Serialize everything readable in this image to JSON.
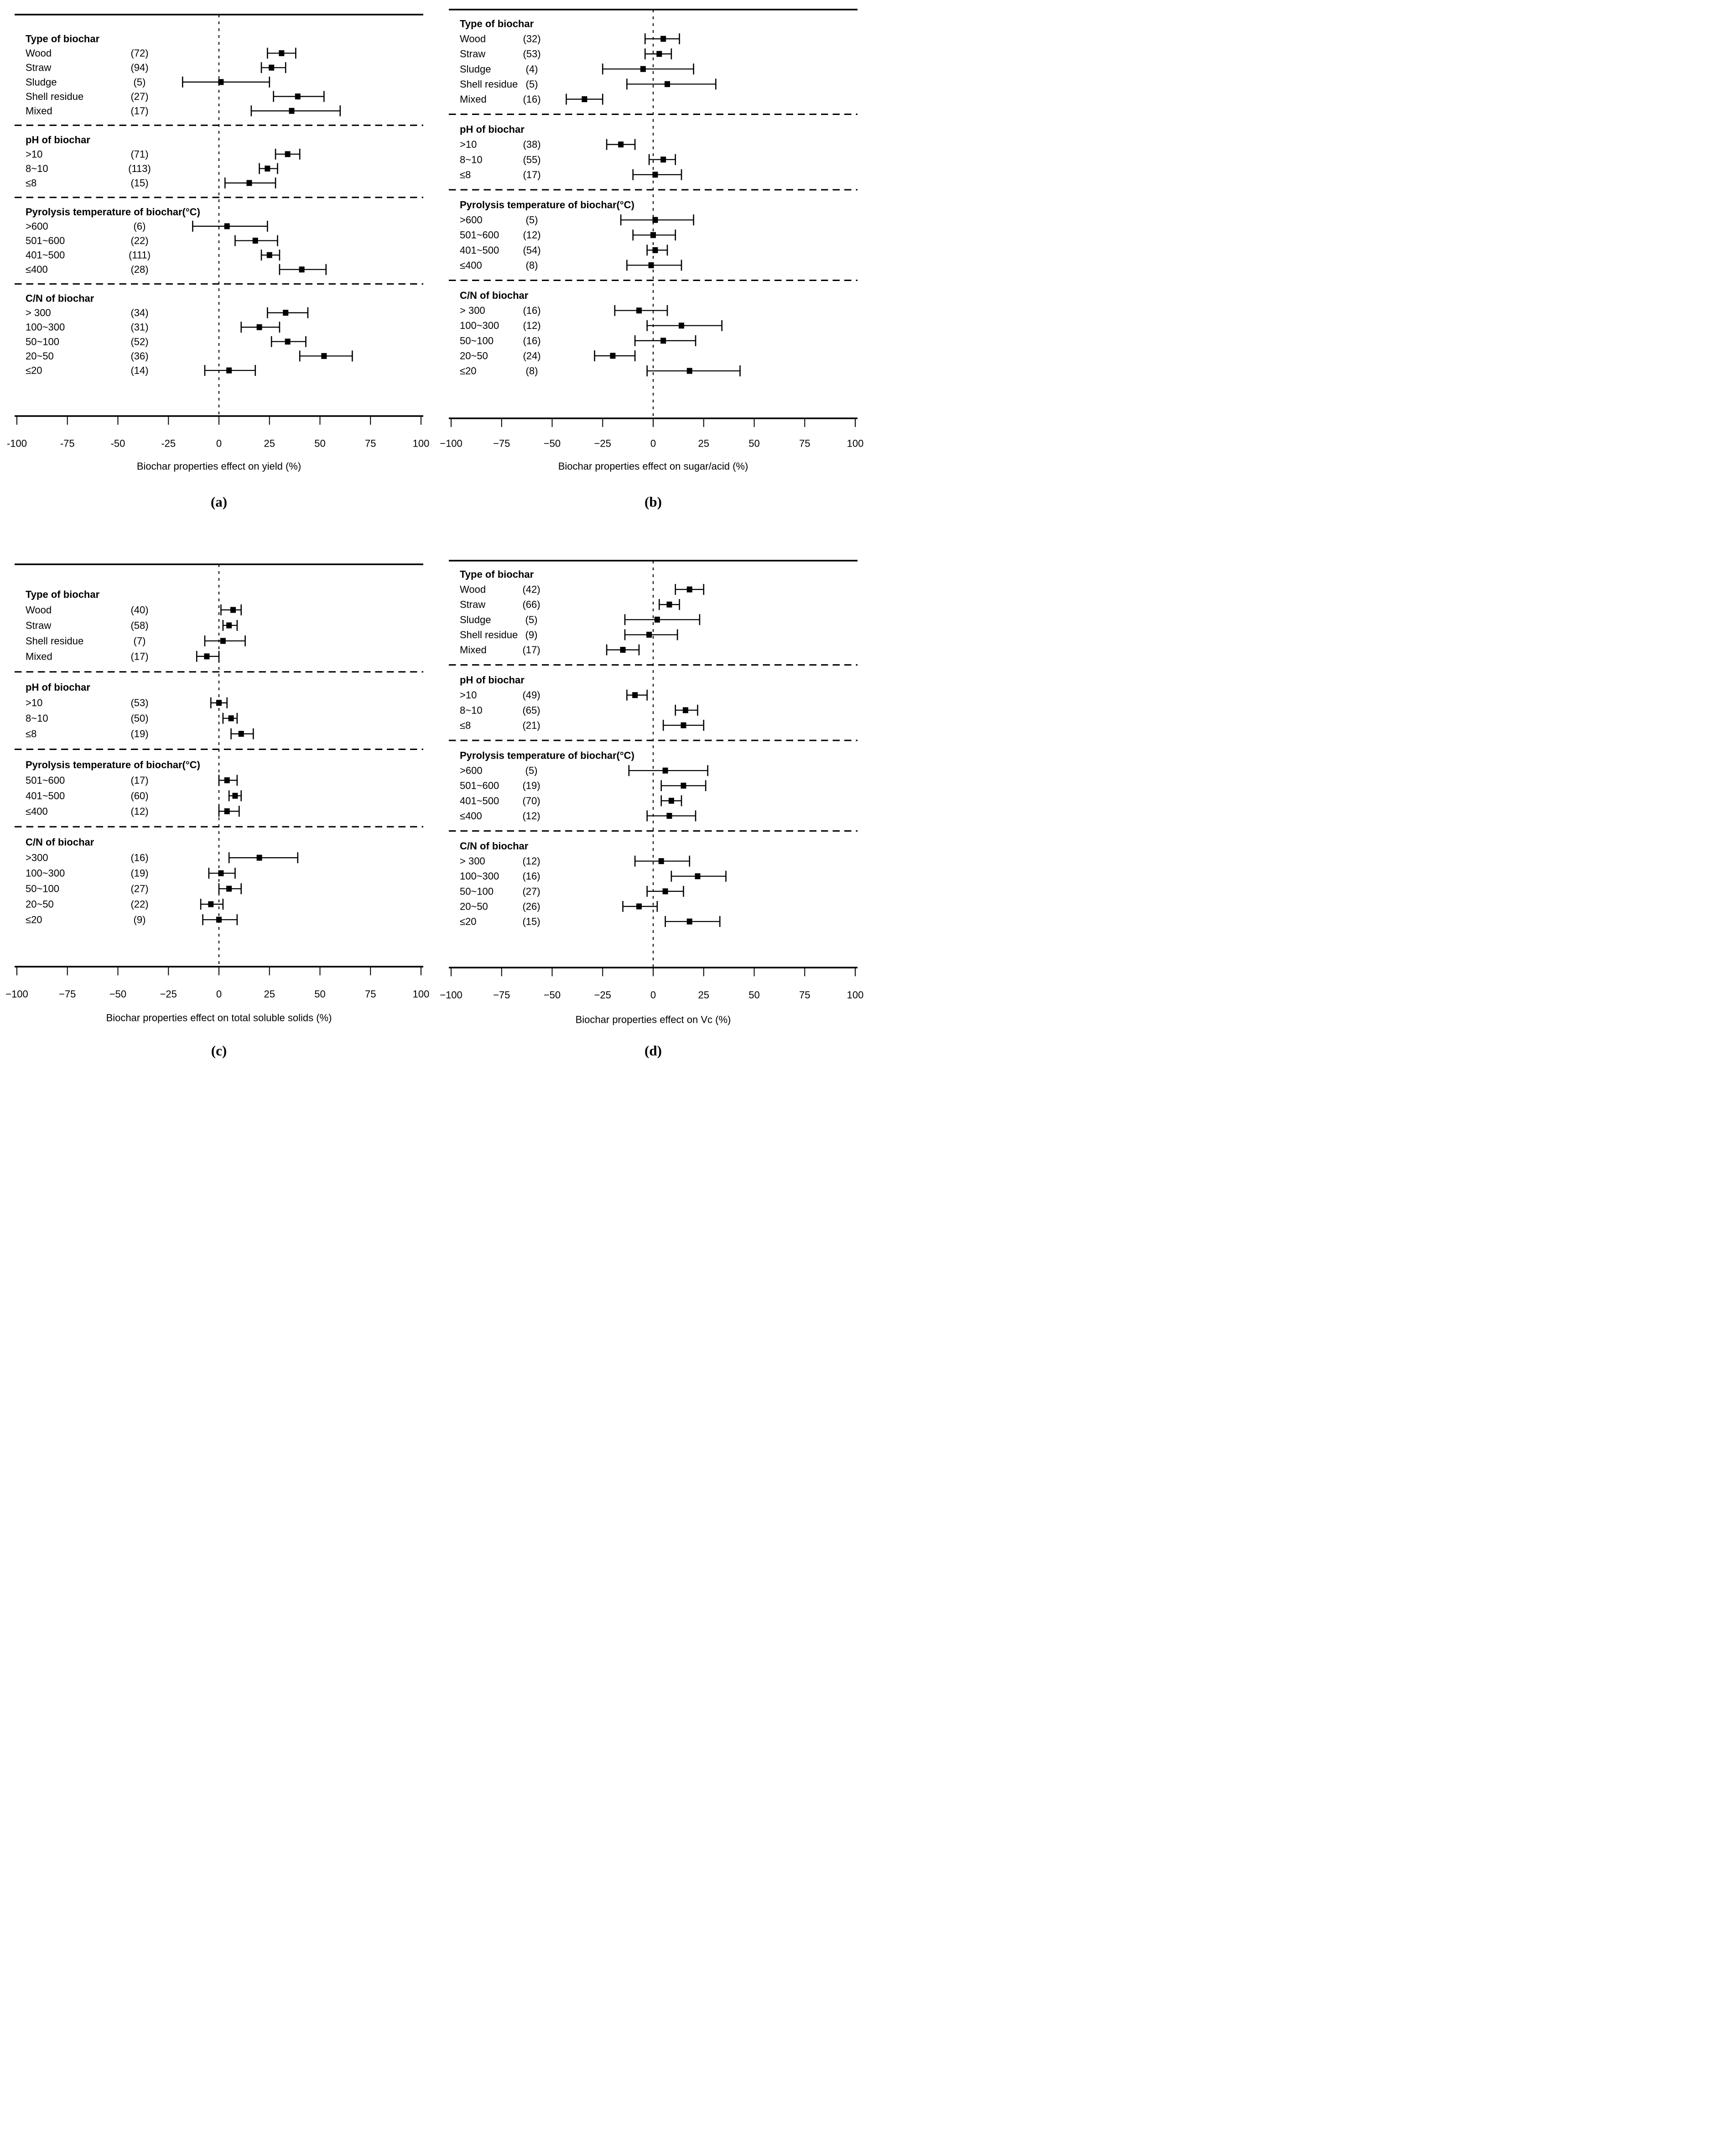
{
  "colors": {
    "ink": "#000000",
    "background": "#ffffff"
  },
  "chart_data": [
    {
      "type": "scatter",
      "style": "forest-plot",
      "id": "a",
      "panel_letter": "(a)",
      "xlabel": "Biochar properties effect on yield (%)",
      "xlim": [
        -100,
        100
      ],
      "xticks": [
        -100,
        -75,
        -50,
        -25,
        0,
        25,
        50,
        75,
        100
      ],
      "xtick_labels": [
        "-100",
        "-75",
        "-50",
        "-25",
        "0",
        "25",
        "50",
        "75",
        "100"
      ],
      "reference_line": 0,
      "legend": "none",
      "grid": false,
      "groups": [
        {
          "heading": "Type of biochar",
          "rows": [
            {
              "label": "Wood",
              "n_label": "(72)",
              "n": 72,
              "est": 31,
              "ci": [
                24,
                38
              ]
            },
            {
              "label": "Straw",
              "n_label": "(94)",
              "n": 94,
              "est": 26,
              "ci": [
                21,
                33
              ]
            },
            {
              "label": "Sludge",
              "n_label": "(5)",
              "n": 5,
              "est": 1,
              "ci": [
                -18,
                25
              ]
            },
            {
              "label": "Shell residue",
              "n_label": "(27)",
              "n": 27,
              "est": 39,
              "ci": [
                27,
                52
              ]
            },
            {
              "label": "Mixed",
              "n_label": "(17)",
              "n": 17,
              "est": 36,
              "ci": [
                16,
                60
              ]
            }
          ]
        },
        {
          "heading": "pH of biochar",
          "rows": [
            {
              "label": ">10",
              "n_label": "(71)",
              "n": 71,
              "est": 34,
              "ci": [
                28,
                40
              ]
            },
            {
              "label": "8~10",
              "n_label": "(113)",
              "n": 113,
              "est": 24,
              "ci": [
                20,
                29
              ]
            },
            {
              "label": "≤8",
              "n_label": "(15)",
              "n": 15,
              "est": 15,
              "ci": [
                3,
                28
              ]
            }
          ]
        },
        {
          "heading": "Pyrolysis temperature of biochar(°C)",
          "rows": [
            {
              "label": ">600",
              "n_label": "(6)",
              "n": 6,
              "est": 4,
              "ci": [
                -13,
                24
              ]
            },
            {
              "label": "501~600",
              "n_label": "(22)",
              "n": 22,
              "est": 18,
              "ci": [
                8,
                29
              ]
            },
            {
              "label": "401~500",
              "n_label": "(111)",
              "n": 111,
              "est": 25,
              "ci": [
                21,
                30
              ]
            },
            {
              "label": "≤400",
              "n_label": "(28)",
              "n": 28,
              "est": 41,
              "ci": [
                30,
                53
              ]
            }
          ]
        },
        {
          "heading": "C/N of biochar",
          "rows": [
            {
              "label": "> 300",
              "n_label": "(34)",
              "n": 34,
              "est": 33,
              "ci": [
                24,
                44
              ]
            },
            {
              "label": "100~300",
              "n_label": "(31)",
              "n": 31,
              "est": 20,
              "ci": [
                11,
                30
              ]
            },
            {
              "label": "50~100",
              "n_label": "(52)",
              "n": 52,
              "est": 34,
              "ci": [
                26,
                43
              ]
            },
            {
              "label": "20~50",
              "n_label": "(36)",
              "n": 36,
              "est": 52,
              "ci": [
                40,
                66
              ]
            },
            {
              "label": "≤20",
              "n_label": "(14)",
              "n": 14,
              "est": 5,
              "ci": [
                -7,
                18
              ]
            }
          ]
        }
      ]
    },
    {
      "type": "scatter",
      "style": "forest-plot",
      "id": "b",
      "panel_letter": "(b)",
      "xlabel": "Biochar properties effect on sugar/acid (%)",
      "xlim": [
        -100,
        100
      ],
      "xticks": [
        -100,
        -75,
        -50,
        -25,
        0,
        25,
        50,
        75,
        100
      ],
      "xtick_labels": [
        "−100",
        "−75",
        "−50",
        "−25",
        "0",
        "25",
        "50",
        "75",
        "100"
      ],
      "reference_line": 0,
      "legend": "none",
      "grid": false,
      "groups": [
        {
          "heading": "Type of biochar",
          "rows": [
            {
              "label": "Wood",
              "n_label": "(32)",
              "n": 32,
              "est": 5,
              "ci": [
                -4,
                13
              ]
            },
            {
              "label": "Straw",
              "n_label": "(53)",
              "n": 53,
              "est": 3,
              "ci": [
                -4,
                9
              ]
            },
            {
              "label": "Sludge",
              "n_label": "(4)",
              "n": 4,
              "est": -5,
              "ci": [
                -25,
                20
              ]
            },
            {
              "label": "Shell residue",
              "n_label": "(5)",
              "n": 5,
              "est": 7,
              "ci": [
                -13,
                31
              ]
            },
            {
              "label": "Mixed",
              "n_label": "(16)",
              "n": 16,
              "est": -34,
              "ci": [
                -43,
                -25
              ]
            }
          ]
        },
        {
          "heading": "pH of biochar",
          "rows": [
            {
              "label": ">10",
              "n_label": "(38)",
              "n": 38,
              "est": -16,
              "ci": [
                -23,
                -9
              ]
            },
            {
              "label": "8~10",
              "n_label": "(55)",
              "n": 55,
              "est": 5,
              "ci": [
                -2,
                11
              ]
            },
            {
              "label": "≤8",
              "n_label": "(17)",
              "n": 17,
              "est": 1,
              "ci": [
                -10,
                14
              ]
            }
          ]
        },
        {
          "heading": "Pyrolysis temperature of biochar(°C)",
          "rows": [
            {
              "label": ">600",
              "n_label": "(5)",
              "n": 5,
              "est": 1,
              "ci": [
                -16,
                20
              ]
            },
            {
              "label": "501~600",
              "n_label": "(12)",
              "n": 12,
              "est": 0,
              "ci": [
                -10,
                11
              ]
            },
            {
              "label": "401~500",
              "n_label": "(54)",
              "n": 54,
              "est": 1,
              "ci": [
                -3,
                7
              ]
            },
            {
              "label": "≤400",
              "n_label": "(8)",
              "n": 8,
              "est": -1,
              "ci": [
                -13,
                14
              ]
            }
          ]
        },
        {
          "heading": "C/N of biochar",
          "rows": [
            {
              "label": "> 300",
              "n_label": "(16)",
              "n": 16,
              "est": -7,
              "ci": [
                -19,
                7
              ]
            },
            {
              "label": "100~300",
              "n_label": "(12)",
              "n": 12,
              "est": 14,
              "ci": [
                -3,
                34
              ]
            },
            {
              "label": "50~100",
              "n_label": "(16)",
              "n": 16,
              "est": 5,
              "ci": [
                -9,
                21
              ]
            },
            {
              "label": "20~50",
              "n_label": "(24)",
              "n": 24,
              "est": -20,
              "ci": [
                -29,
                -9
              ]
            },
            {
              "label": "≤20",
              "n_label": "(8)",
              "n": 8,
              "est": 18,
              "ci": [
                -3,
                43
              ]
            }
          ]
        }
      ]
    },
    {
      "type": "scatter",
      "style": "forest-plot",
      "id": "c",
      "panel_letter": "(c)",
      "xlabel": "Biochar properties effect on total soluble solids (%)",
      "xlim": [
        -100,
        100
      ],
      "xticks": [
        -100,
        -75,
        -50,
        -25,
        0,
        25,
        50,
        75,
        100
      ],
      "xtick_labels": [
        "−100",
        "−75",
        "−50",
        "−25",
        "0",
        "25",
        "50",
        "75",
        "100"
      ],
      "reference_line": 0,
      "legend": "none",
      "grid": false,
      "groups": [
        {
          "heading": "Type of biochar",
          "rows": [
            {
              "label": "Wood",
              "n_label": "(40)",
              "n": 40,
              "est": 7,
              "ci": [
                1,
                11
              ]
            },
            {
              "label": "Straw",
              "n_label": "(58)",
              "n": 58,
              "est": 5,
              "ci": [
                2,
                9
              ]
            },
            {
              "label": "Shell residue",
              "n_label": "(7)",
              "n": 7,
              "est": 2,
              "ci": [
                -7,
                13
              ]
            },
            {
              "label": "Mixed",
              "n_label": "(17)",
              "n": 17,
              "est": -6,
              "ci": [
                -11,
                0
              ]
            }
          ]
        },
        {
          "heading": "pH of biochar",
          "rows": [
            {
              "label": ">10",
              "n_label": "(53)",
              "n": 53,
              "est": 0,
              "ci": [
                -4,
                4
              ]
            },
            {
              "label": "8~10",
              "n_label": "(50)",
              "n": 50,
              "est": 6,
              "ci": [
                2,
                9
              ]
            },
            {
              "label": "≤8",
              "n_label": "(19)",
              "n": 19,
              "est": 11,
              "ci": [
                6,
                17
              ]
            }
          ]
        },
        {
          "heading": "Pyrolysis temperature of biochar(°C)",
          "rows": [
            {
              "label": "501~600",
              "n_label": "(17)",
              "n": 17,
              "est": 4,
              "ci": [
                0,
                9
              ]
            },
            {
              "label": "401~500",
              "n_label": "(60)",
              "n": 60,
              "est": 8,
              "ci": [
                5,
                11
              ]
            },
            {
              "label": "≤400",
              "n_label": "(12)",
              "n": 12,
              "est": 4,
              "ci": [
                0,
                10
              ]
            }
          ]
        },
        {
          "heading": "C/N of biochar",
          "rows": [
            {
              "label": ">300",
              "n_label": "(16)",
              "n": 16,
              "est": 20,
              "ci": [
                5,
                39
              ]
            },
            {
              "label": "100~300",
              "n_label": "(19)",
              "n": 19,
              "est": 1,
              "ci": [
                -5,
                8
              ]
            },
            {
              "label": "50~100",
              "n_label": "(27)",
              "n": 27,
              "est": 5,
              "ci": [
                0,
                11
              ]
            },
            {
              "label": "20~50",
              "n_label": "(22)",
              "n": 22,
              "est": -4,
              "ci": [
                -9,
                2
              ]
            },
            {
              "label": "≤20",
              "n_label": "(9)",
              "n": 9,
              "est": 0,
              "ci": [
                -8,
                9
              ]
            }
          ]
        }
      ]
    },
    {
      "type": "scatter",
      "style": "forest-plot",
      "id": "d",
      "panel_letter": "(d)",
      "xlabel": "Biochar properties effect on Vc (%)",
      "xlim": [
        -100,
        100
      ],
      "xticks": [
        -100,
        -75,
        -50,
        -25,
        0,
        25,
        50,
        75,
        100
      ],
      "xtick_labels": [
        "−100",
        "−75",
        "−50",
        "−25",
        "0",
        "25",
        "50",
        "75",
        "100"
      ],
      "reference_line": 0,
      "legend": "none",
      "grid": false,
      "groups": [
        {
          "heading": "Type of biochar",
          "rows": [
            {
              "label": "Wood",
              "n_label": "(42)",
              "n": 42,
              "est": 18,
              "ci": [
                11,
                25
              ]
            },
            {
              "label": "Straw",
              "n_label": "(66)",
              "n": 66,
              "est": 8,
              "ci": [
                3,
                13
              ]
            },
            {
              "label": "Sludge",
              "n_label": "(5)",
              "n": 5,
              "est": 2,
              "ci": [
                -14,
                23
              ]
            },
            {
              "label": "Shell residue",
              "n_label": "(9)",
              "n": 9,
              "est": -2,
              "ci": [
                -14,
                12
              ]
            },
            {
              "label": "Mixed",
              "n_label": "(17)",
              "n": 17,
              "est": -15,
              "ci": [
                -23,
                -7
              ]
            }
          ]
        },
        {
          "heading": "pH of biochar",
          "rows": [
            {
              "label": ">10",
              "n_label": "(49)",
              "n": 49,
              "est": -9,
              "ci": [
                -13,
                -3
              ]
            },
            {
              "label": "8~10",
              "n_label": "(65)",
              "n": 65,
              "est": 16,
              "ci": [
                11,
                22
              ]
            },
            {
              "label": "≤8",
              "n_label": "(21)",
              "n": 21,
              "est": 15,
              "ci": [
                5,
                25
              ]
            }
          ]
        },
        {
          "heading": "Pyrolysis temperature of biochar(°C)",
          "rows": [
            {
              "label": ">600",
              "n_label": "(5)",
              "n": 5,
              "est": 6,
              "ci": [
                -12,
                27
              ]
            },
            {
              "label": "501~600",
              "n_label": "(19)",
              "n": 19,
              "est": 15,
              "ci": [
                4,
                26
              ]
            },
            {
              "label": "401~500",
              "n_label": "(70)",
              "n": 70,
              "est": 9,
              "ci": [
                4,
                14
              ]
            },
            {
              "label": "≤400",
              "n_label": "(12)",
              "n": 12,
              "est": 8,
              "ci": [
                -3,
                21
              ]
            }
          ]
        },
        {
          "heading": "C/N of biochar",
          "rows": [
            {
              "label": "> 300",
              "n_label": "(12)",
              "n": 12,
              "est": 4,
              "ci": [
                -9,
                18
              ]
            },
            {
              "label": "100~300",
              "n_label": "(16)",
              "n": 16,
              "est": 22,
              "ci": [
                9,
                36
              ]
            },
            {
              "label": "50~100",
              "n_label": "(27)",
              "n": 27,
              "est": 6,
              "ci": [
                -3,
                15
              ]
            },
            {
              "label": "20~50",
              "n_label": "(26)",
              "n": 26,
              "est": -7,
              "ci": [
                -15,
                2
              ]
            },
            {
              "label": "≤20",
              "n_label": "(15)",
              "n": 15,
              "est": 18,
              "ci": [
                6,
                33
              ]
            }
          ]
        }
      ]
    }
  ]
}
